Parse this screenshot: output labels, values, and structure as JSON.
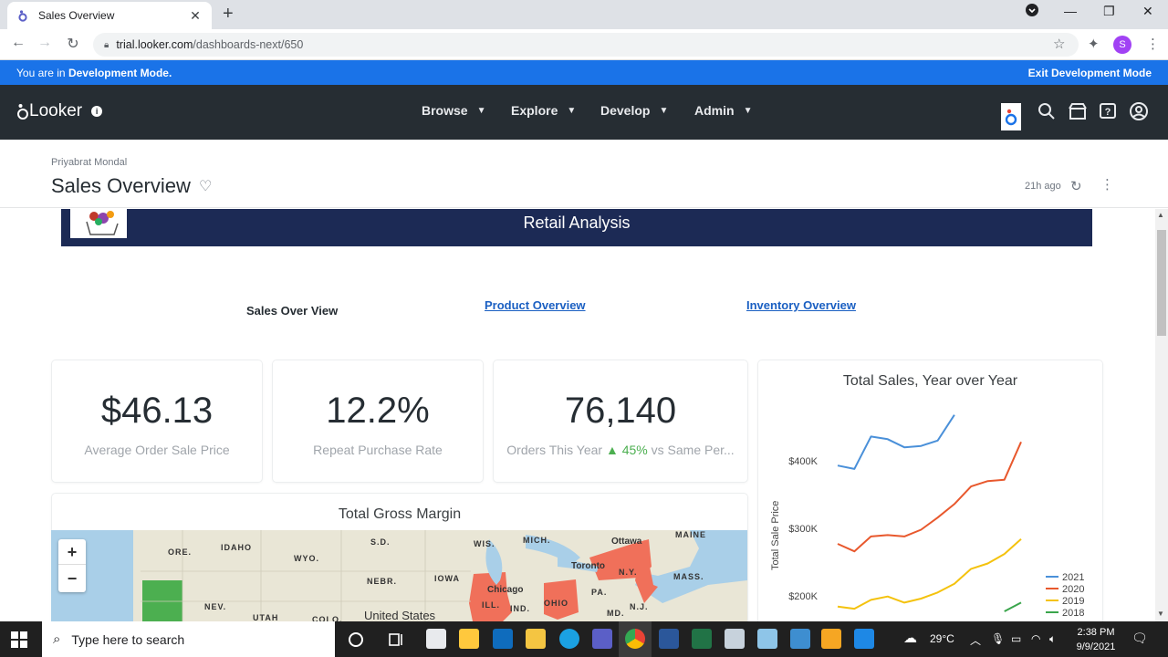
{
  "browser": {
    "tab_title": "Sales Overview",
    "url_host": "trial.looker.com",
    "url_path": "/dashboards-next/650",
    "profile_initial": "S"
  },
  "dev_banner": {
    "prefix": "You are in ",
    "mode": "Development Mode.",
    "exit_label": "Exit Development Mode"
  },
  "looker_nav": {
    "logo_text": "Looker",
    "menus": [
      "Browse",
      "Explore",
      "Develop",
      "Admin"
    ]
  },
  "dashboard": {
    "owner": "Priyabrat Mondal",
    "title": "Sales Overview",
    "updated": "21h ago"
  },
  "banner": {
    "title": "Retail Analysis"
  },
  "tabs": {
    "active": "Sales Over View",
    "links": [
      "Product Overview",
      "Inventory Overview"
    ]
  },
  "kpis": [
    {
      "value": "$46.13",
      "label": "Average Order Sale Price"
    },
    {
      "value": "12.2%",
      "label": "Repeat Purchase Rate"
    },
    {
      "value": "76,140",
      "label_prefix": "Orders This Year ",
      "delta": "45%",
      "label_suffix": " vs Same Per..."
    }
  ],
  "gross_margin": {
    "title": "Total Gross Margin",
    "map_labels": [
      "ORE.",
      "IDAHO",
      "WYO.",
      "S.D.",
      "NEBR.",
      "IOWA",
      "NEV.",
      "UTAH",
      "COLO.",
      "United States",
      "WIS.",
      "MICH.",
      "Chicago",
      "ILL.",
      "IND.",
      "OHIO",
      "PA.",
      "MD.",
      "N.J.",
      "N.Y.",
      "MASS.",
      "MAINE",
      "Ottawa",
      "Toronto"
    ],
    "highlight_color": "#f0705a",
    "secondary_color": "#4caf50"
  },
  "chart_data": {
    "type": "line",
    "title": "Total Sales, Year over Year",
    "ylabel": "Total Sale Price",
    "y_ticks": [
      "$400K",
      "$300K",
      "$200K"
    ],
    "tick_values": [
      400000,
      300000,
      200000
    ],
    "x": [
      1,
      2,
      3,
      4,
      5,
      6,
      7,
      8,
      9,
      10,
      11,
      12
    ],
    "series": [
      {
        "name": "2021",
        "color": "#4a90d9",
        "values": [
          393000,
          388000,
          436000,
          432000,
          420000,
          422000,
          430000,
          468000,
          null,
          null,
          null,
          null
        ]
      },
      {
        "name": "2020",
        "color": "#e8582d",
        "values": [
          277000,
          266000,
          288000,
          290000,
          288000,
          298000,
          316000,
          336000,
          362000,
          370000,
          372000,
          428000
        ]
      },
      {
        "name": "2019",
        "color": "#f4c20d",
        "values": [
          184000,
          181000,
          194000,
          199000,
          190000,
          196000,
          205000,
          218000,
          240000,
          248000,
          262000,
          284000
        ]
      },
      {
        "name": "2018",
        "color": "#3aa54c",
        "values": [
          null,
          null,
          null,
          null,
          null,
          null,
          null,
          null,
          null,
          null,
          177000,
          190000
        ]
      }
    ],
    "ylim": [
      150000,
      480000
    ]
  },
  "taskbar": {
    "search_placeholder": "Type here to search",
    "temperature": "29°C",
    "time": "2:38 PM",
    "date": "9/9/2021"
  }
}
